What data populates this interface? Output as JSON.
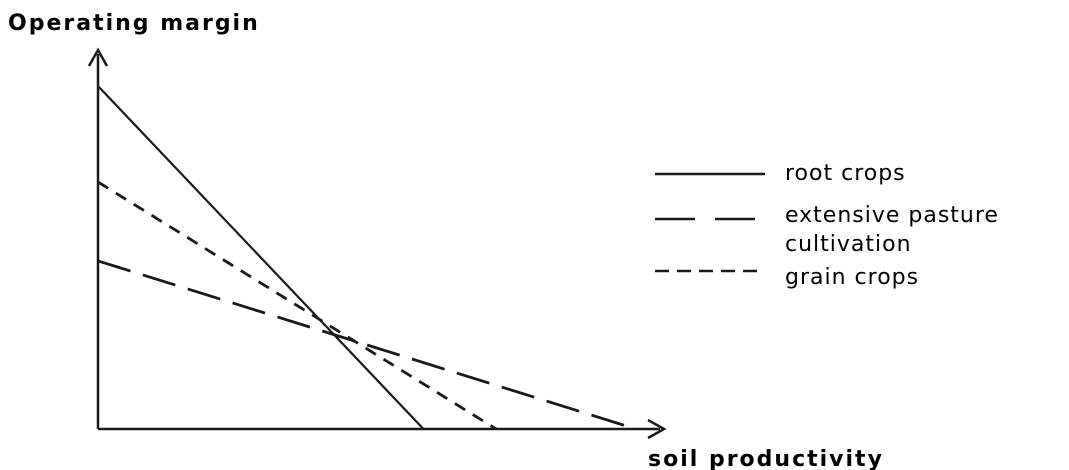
{
  "chart_data": {
    "type": "line",
    "title": "",
    "ylabel": "Operating margin",
    "xlabel": "soil productivity",
    "xlim": [
      0,
      10
    ],
    "ylim": [
      0,
      10
    ],
    "legend_position": "right",
    "series": [
      {
        "name": "root crops",
        "style": "solid",
        "x": [
          0,
          6.05
        ],
        "y": [
          10,
          0
        ]
      },
      {
        "name": "extensive pasture cultivation",
        "style": "long-dash",
        "x": [
          0,
          10
        ],
        "y": [
          4.9,
          0
        ]
      },
      {
        "name": "grain crops",
        "style": "short-dash",
        "x": [
          0,
          7.4
        ],
        "y": [
          7.2,
          0
        ]
      }
    ],
    "legend": [
      {
        "lines": [
          "root crops"
        ]
      },
      {
        "lines": [
          "extensive pasture",
          "cultivation"
        ]
      },
      {
        "lines": [
          "grain crops"
        ]
      }
    ]
  }
}
